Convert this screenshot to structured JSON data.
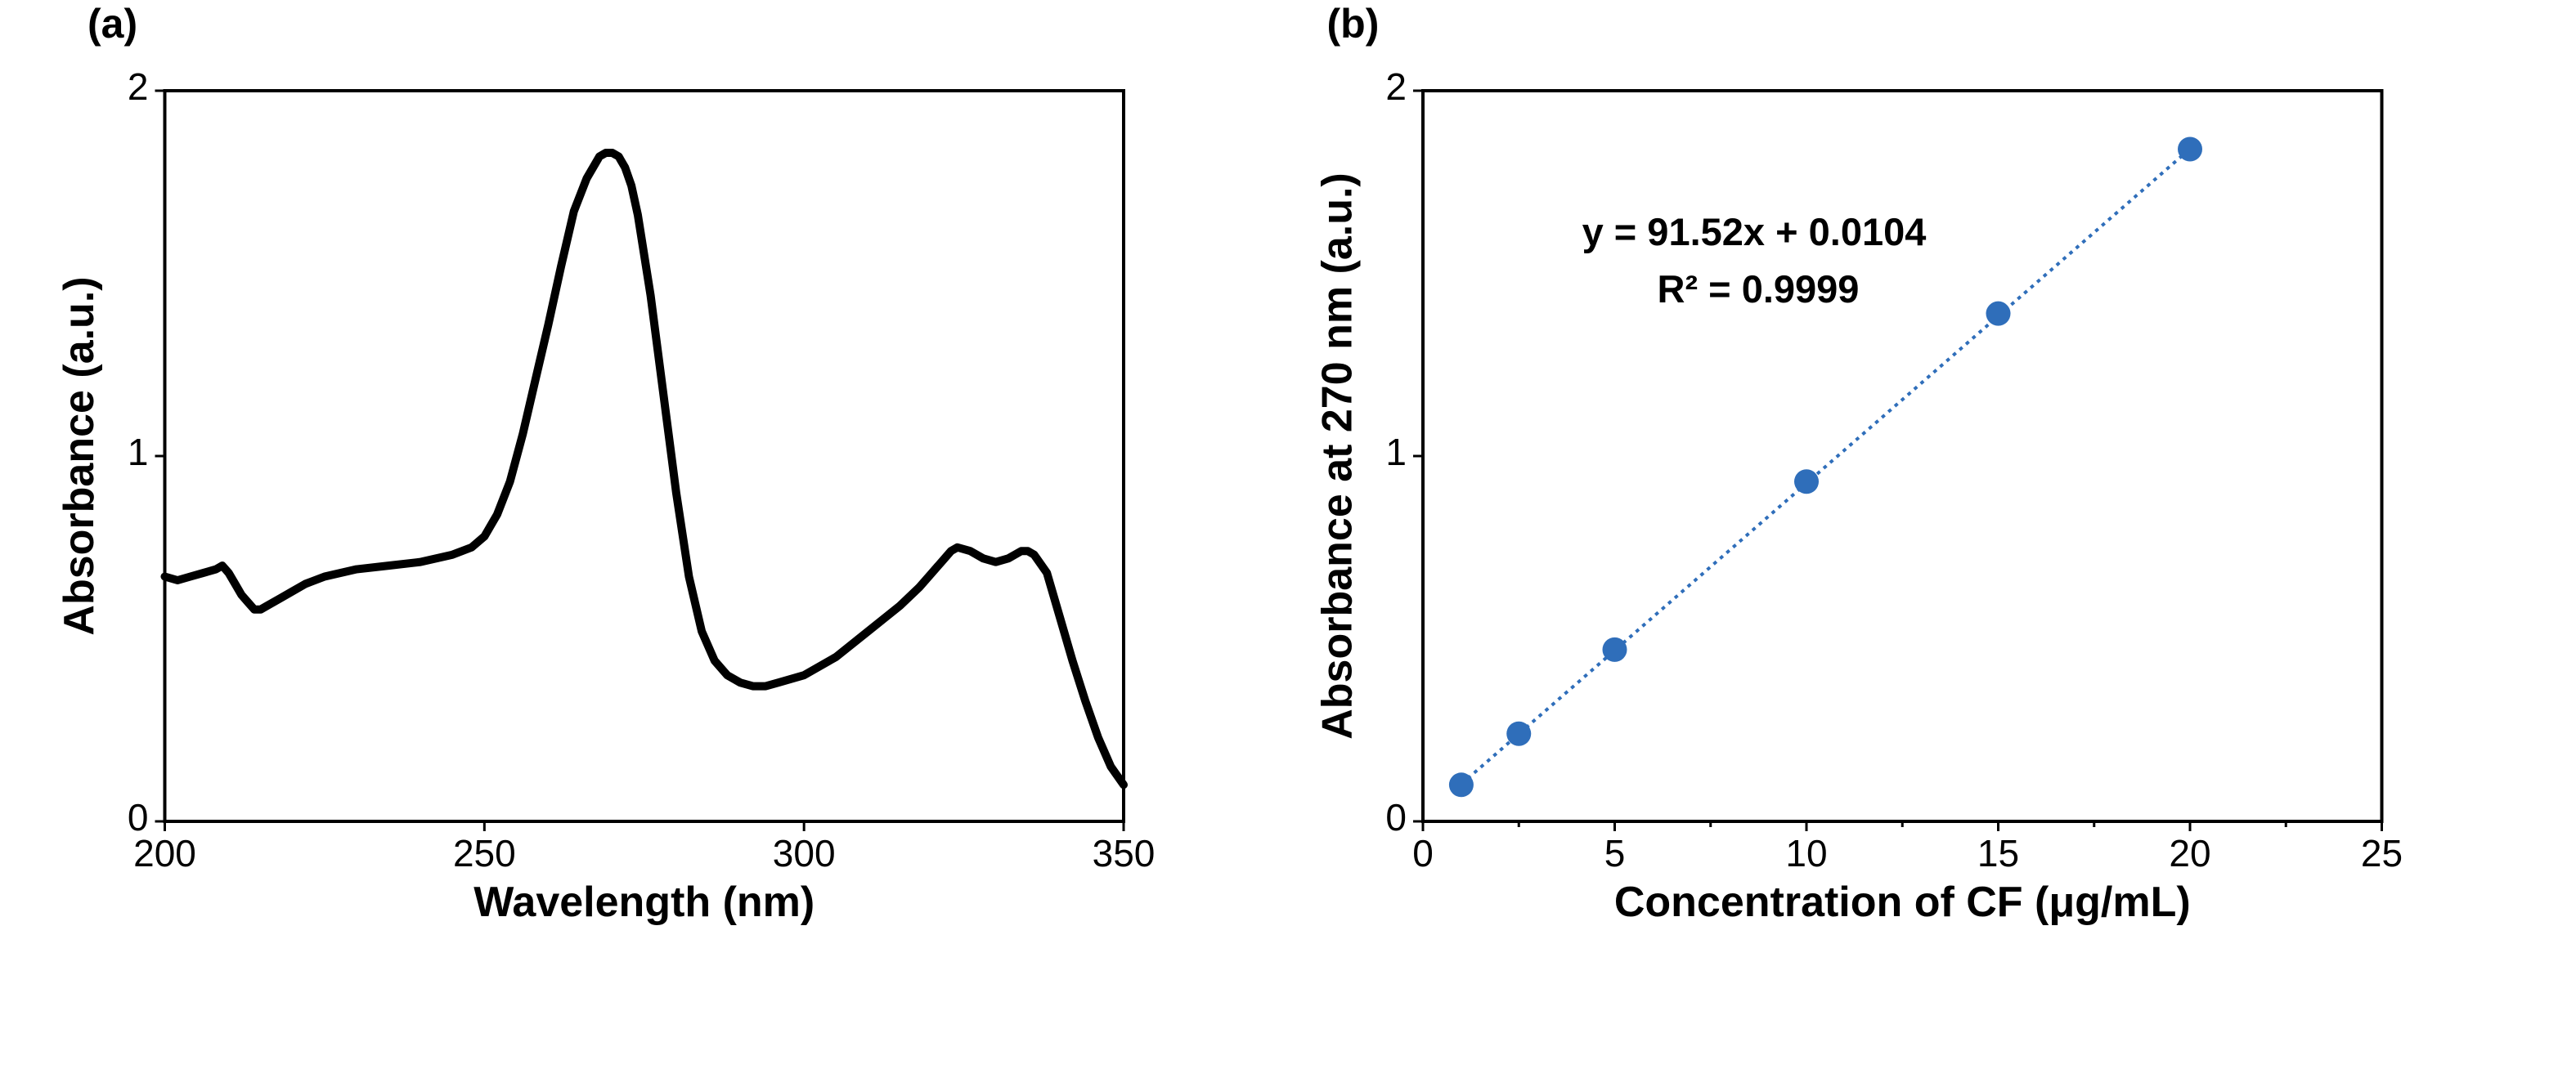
{
  "chart_data": [
    {
      "type": "line",
      "panel_label": "(a)",
      "title": "",
      "xlabel": "Wavelength (nm)",
      "ylabel": "Absorbance (a.u.)",
      "xlim": [
        200,
        350
      ],
      "ylim": [
        0,
        2
      ],
      "x_major_ticks": [
        200,
        250,
        300,
        350
      ],
      "y_major_ticks": [
        0,
        1,
        2
      ],
      "x_tick_labels": [
        "200",
        "250",
        "300",
        "350"
      ],
      "y_tick_labels": [
        "0",
        "1",
        "2"
      ],
      "grid": false,
      "line_color": "#000000",
      "series": [
        {
          "x": [
            200,
            202,
            204,
            206,
            208,
            209,
            210,
            211,
            212,
            213,
            214,
            215,
            216,
            218,
            220,
            222,
            225,
            230,
            235,
            240,
            245,
            248,
            250,
            252,
            254,
            256,
            258,
            260,
            262,
            264,
            266,
            268,
            269,
            270,
            271,
            272,
            273,
            274,
            276,
            278,
            280,
            282,
            284,
            286,
            288,
            290,
            292,
            294,
            296,
            300,
            305,
            310,
            315,
            318,
            320,
            322,
            323,
            324,
            326,
            328,
            330,
            332,
            334,
            335,
            336,
            338,
            340,
            342,
            344,
            346,
            348,
            350
          ],
          "y": [
            0.67,
            0.66,
            0.67,
            0.68,
            0.69,
            0.7,
            0.68,
            0.65,
            0.62,
            0.6,
            0.58,
            0.58,
            0.59,
            0.61,
            0.63,
            0.65,
            0.67,
            0.69,
            0.7,
            0.71,
            0.73,
            0.75,
            0.78,
            0.84,
            0.93,
            1.06,
            1.21,
            1.36,
            1.52,
            1.67,
            1.76,
            1.82,
            1.83,
            1.83,
            1.82,
            1.79,
            1.74,
            1.66,
            1.44,
            1.17,
            0.9,
            0.67,
            0.52,
            0.44,
            0.4,
            0.38,
            0.37,
            0.37,
            0.38,
            0.4,
            0.45,
            0.52,
            0.59,
            0.64,
            0.68,
            0.72,
            0.74,
            0.75,
            0.74,
            0.72,
            0.71,
            0.72,
            0.74,
            0.74,
            0.73,
            0.68,
            0.56,
            0.44,
            0.33,
            0.23,
            0.15,
            0.1
          ]
        }
      ]
    },
    {
      "type": "scatter",
      "panel_label": "(b)",
      "title": "",
      "xlabel": "Concentration of CF (μg/mL)",
      "ylabel": "Absorbance at 270 nm (a.u.)",
      "xlim": [
        0,
        25
      ],
      "ylim": [
        0,
        2
      ],
      "x_major_ticks": [
        0,
        5,
        10,
        15,
        20,
        25
      ],
      "x_minor_ticks": [
        2.5,
        7.5,
        12.5,
        17.5,
        22.5
      ],
      "y_major_ticks": [
        0,
        1,
        2
      ],
      "x_tick_labels": [
        "0",
        "5",
        "10",
        "15",
        "20",
        "25"
      ],
      "y_tick_labels": [
        "0",
        "1",
        "2"
      ],
      "grid": false,
      "marker_color": "#2F6EBA",
      "trendline_color": "#2F6EBA",
      "series": [
        {
          "x": [
            1,
            2.5,
            5,
            10,
            15,
            20
          ],
          "y": [
            0.1,
            0.24,
            0.47,
            0.93,
            1.39,
            1.84
          ]
        }
      ],
      "trendline": {
        "slope": 91.52,
        "intercept": 0.0104,
        "x_factor": 0.001,
        "from_x": 1,
        "to_x": 20
      },
      "equation": "y = 91.52x + 0.0104",
      "r_squared": "R² = 0.9999"
    }
  ]
}
